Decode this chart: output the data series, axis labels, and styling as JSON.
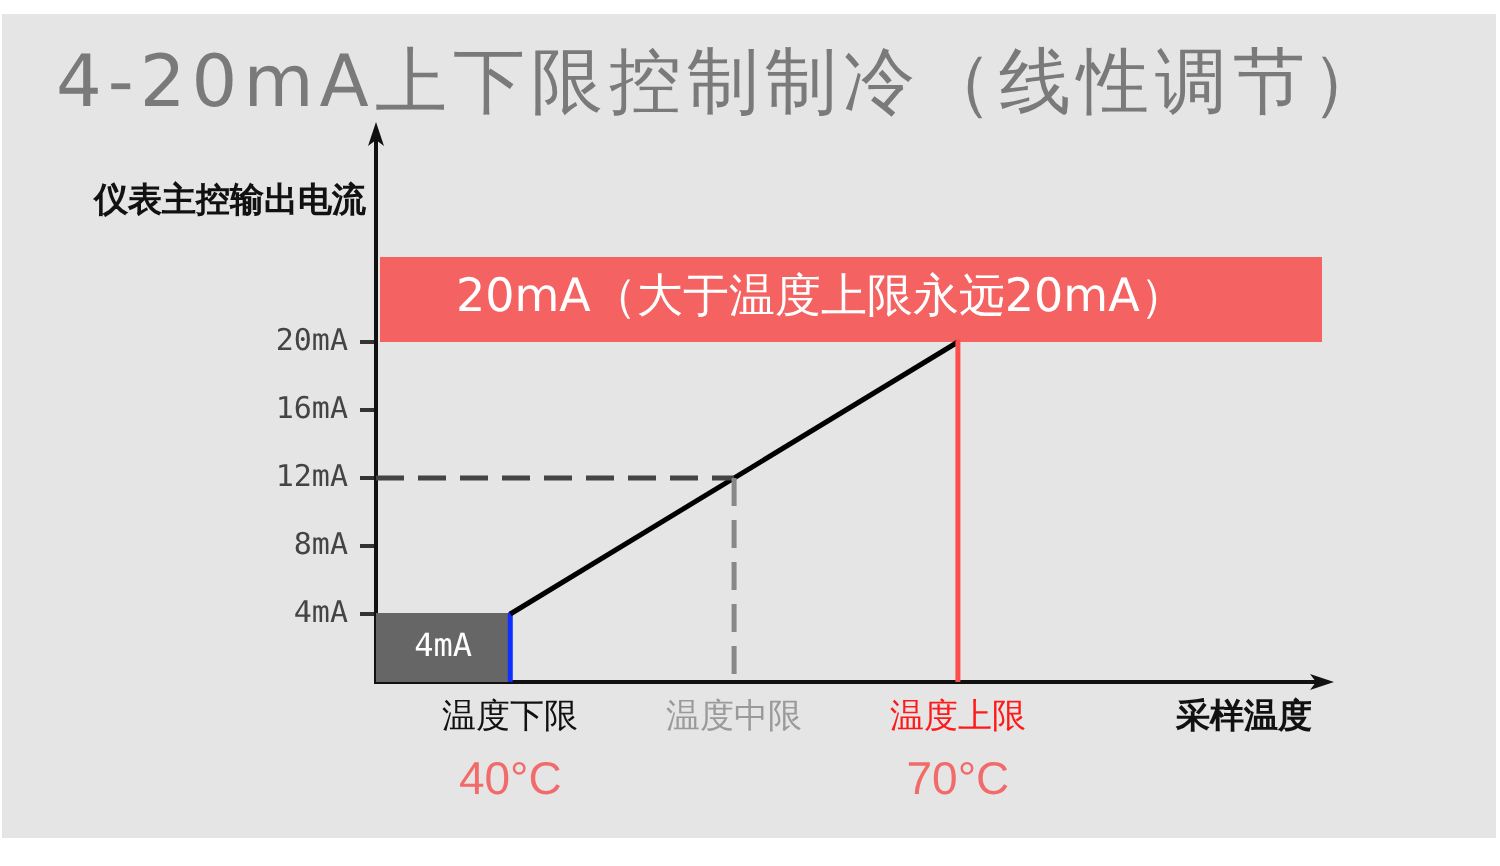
{
  "chart_data": {
    "type": "line",
    "title": "4-20mA上下限控制制冷（线性调节）",
    "xlabel": "采样温度",
    "ylabel": "仪表主控输出电流",
    "xlim": [
      31,
      94
    ],
    "xticks": [
      {
        "value": 40,
        "label": "40°C"
      },
      {
        "value": 70,
        "label": "70°C"
      }
    ],
    "ylim": [
      0,
      32
    ],
    "yticks": [
      {
        "value": 4,
        "label": "4mA"
      },
      {
        "value": 8,
        "label": "8mA"
      },
      {
        "value": 12,
        "label": "12mA"
      },
      {
        "value": 16,
        "label": "16mA"
      },
      {
        "value": 20,
        "label": "20mA"
      }
    ],
    "series": [
      {
        "type": "area",
        "color": "#666666",
        "x": [
          31,
          40
        ],
        "values": [
          4,
          4
        ],
        "value_labels": [
          "4mA",
          null
        ]
      },
      {
        "color": "#1030ff",
        "x": [
          40,
          40
        ],
        "values": [
          4,
          0
        ]
      },
      {
        "color": "#000000",
        "x": [
          40,
          70
        ],
        "values": [
          4,
          20
        ]
      },
      {
        "color": "#444444",
        "line_style": "dashed",
        "x": [
          31,
          55
        ],
        "values": [
          12,
          12
        ]
      },
      {
        "color": "#888888",
        "line_style": "dashed",
        "x": [
          55,
          55
        ],
        "values": [
          12,
          0
        ]
      },
      {
        "color": "#ff4d4d",
        "x": [
          70,
          70
        ],
        "values": [
          20,
          0
        ]
      }
    ],
    "bands": [
      {
        "axis": "y",
        "from": 20,
        "to": 25,
        "label": "20mA（大于温度上限永远20mA）",
        "color": "#f46262"
      }
    ],
    "annotations": [
      {
        "text": "温度下限",
        "x": 40,
        "y": 0
      },
      {
        "text": "温度中限",
        "x": 55,
        "y": 0
      },
      {
        "text": "温度上限",
        "x": 70,
        "y": 0
      }
    ]
  }
}
